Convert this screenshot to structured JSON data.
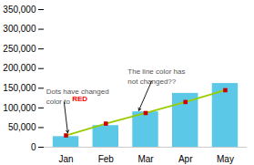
{
  "chart_data": {
    "type": "bar",
    "categories": [
      "Jan",
      "Feb",
      "Mar",
      "Apr",
      "May"
    ],
    "series": [
      {
        "type": "bar",
        "color": "#5bc8e8",
        "values": [
          27000,
          55000,
          90000,
          137000,
          162000
        ]
      },
      {
        "type": "line",
        "color": "#99cc00",
        "values": [
          30000,
          60000,
          87000,
          115000,
          145000
        ]
      },
      {
        "type": "scatter",
        "color": "#cc0000",
        "marker": "square",
        "values": [
          30000,
          60000,
          87000,
          115000,
          145000
        ]
      }
    ],
    "ylim": [
      0,
      350000
    ],
    "yticks": [
      0,
      {
        "value": 50000,
        "label": "50,000"
      },
      {
        "value": 100000,
        "label": "100,000"
      },
      {
        "value": 150000,
        "label": "150,000"
      },
      {
        "value": 200000,
        "label": "200,000"
      },
      {
        "value": 250000,
        "label": "250,000"
      },
      {
        "value": 300000,
        "label": "300,000"
      },
      {
        "value": 350000,
        "label": "350,000"
      }
    ],
    "grid": false,
    "annotations": [
      {
        "text": "Dots have changed\ncolor to "
      },
      {
        "text": "RED",
        "color": "red"
      },
      {
        "text": "The line color has\nnot changed??"
      }
    ]
  }
}
